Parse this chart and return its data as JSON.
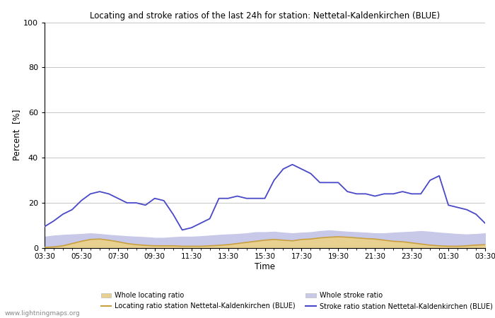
{
  "title": "Locating and stroke ratios of the last 24h for station: Nettetal-Kaldenkirchen (BLUE)",
  "xlabel": "Time",
  "ylabel": "Percent  [%]",
  "ylim": [
    0,
    100
  ],
  "yticks": [
    0,
    20,
    40,
    60,
    80,
    100
  ],
  "xtick_labels": [
    "03:30",
    "05:30",
    "07:30",
    "09:30",
    "11:30",
    "13:30",
    "15:30",
    "17:30",
    "19:30",
    "21:30",
    "23:30",
    "01:30",
    "03:30"
  ],
  "watermark": "www.lightningmaps.org",
  "bg_color": "#ffffff",
  "plot_bg_color": "#ffffff",
  "whole_locating_fill_color": "#e8d090",
  "whole_stroke_fill_color": "#c8c8e8",
  "locating_line_color": "#c8a040",
  "stroke_line_color": "#4848c8",
  "time_hours": [
    0,
    0.5,
    1,
    1.5,
    2,
    2.5,
    3,
    3.5,
    4,
    4.5,
    5,
    5.5,
    6,
    6.5,
    7,
    7.5,
    8,
    8.5,
    9,
    9.5,
    10,
    10.5,
    11,
    11.5,
    12,
    12.5,
    13,
    13.5,
    14,
    14.5,
    15,
    15.5,
    16,
    16.5,
    17,
    17.5,
    18,
    18.5,
    19,
    19.5,
    20,
    20.5,
    21,
    21.5,
    22,
    22.5,
    23,
    23.5,
    24
  ],
  "whole_locating": [
    0.3,
    0.5,
    1.0,
    2.0,
    3.0,
    3.8,
    4.0,
    3.5,
    2.8,
    2.0,
    1.5,
    1.2,
    1.0,
    1.0,
    1.0,
    0.8,
    0.8,
    0.8,
    1.0,
    1.2,
    1.5,
    2.0,
    2.5,
    3.0,
    3.5,
    3.8,
    3.5,
    3.2,
    3.8,
    4.0,
    4.5,
    4.8,
    5.0,
    4.8,
    4.5,
    4.2,
    4.0,
    3.5,
    3.0,
    2.8,
    2.3,
    1.8,
    1.3,
    1.0,
    0.8,
    0.8,
    1.0,
    1.3,
    1.5
  ],
  "whole_stroke": [
    5.0,
    5.5,
    5.8,
    6.0,
    6.2,
    6.5,
    6.2,
    5.8,
    5.5,
    5.2,
    5.0,
    4.8,
    4.5,
    4.5,
    4.8,
    5.0,
    5.0,
    5.2,
    5.5,
    5.8,
    6.0,
    6.2,
    6.5,
    7.0,
    7.0,
    7.2,
    6.8,
    6.5,
    6.8,
    7.0,
    7.5,
    7.8,
    7.5,
    7.2,
    7.0,
    6.8,
    6.5,
    6.5,
    6.8,
    7.0,
    7.2,
    7.5,
    7.2,
    6.8,
    6.5,
    6.2,
    6.0,
    6.2,
    6.5
  ],
  "locating_ratio": [
    0.3,
    0.5,
    1.0,
    2.0,
    3.0,
    3.8,
    4.0,
    3.5,
    2.8,
    2.0,
    1.5,
    1.2,
    1.0,
    1.0,
    1.0,
    0.8,
    0.8,
    0.8,
    1.0,
    1.2,
    1.5,
    2.0,
    2.5,
    3.0,
    3.5,
    3.8,
    3.5,
    3.2,
    3.8,
    4.0,
    4.5,
    4.8,
    5.0,
    4.8,
    4.5,
    4.2,
    4.0,
    3.5,
    3.0,
    2.8,
    2.3,
    1.8,
    1.3,
    1.0,
    0.8,
    0.8,
    1.0,
    1.3,
    1.5
  ],
  "stroke_ratio": [
    9.5,
    12,
    15,
    17,
    21,
    24,
    25,
    24,
    22,
    20,
    20,
    19,
    22,
    21,
    15,
    8,
    9,
    11,
    13,
    22,
    22,
    23,
    22,
    22,
    22,
    30,
    35,
    37,
    35,
    33,
    29,
    29,
    29,
    25,
    24,
    24,
    23,
    24,
    24,
    25,
    24,
    24,
    30,
    32,
    19,
    18,
    17,
    15,
    11
  ]
}
